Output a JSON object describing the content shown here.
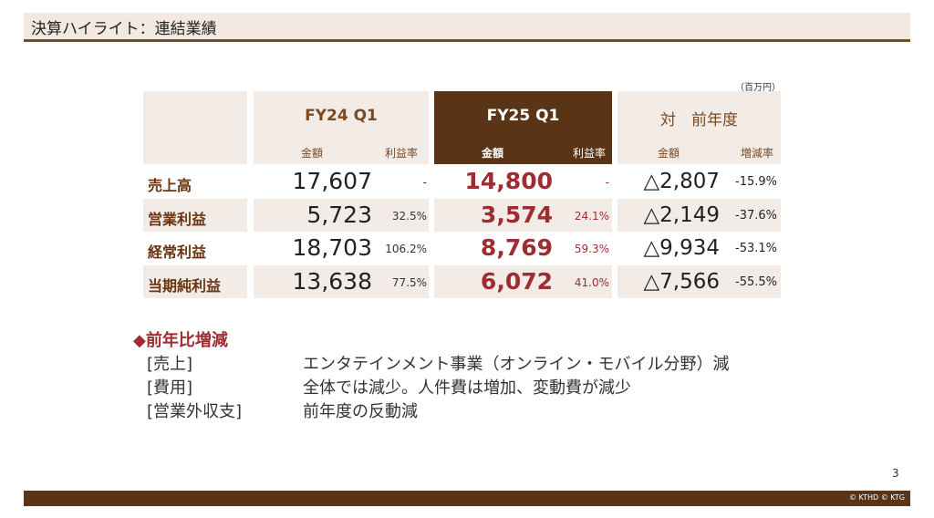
{
  "title": "決算ハイライト：連結業績",
  "unit": "（百万円）",
  "headers": {
    "fy24": "FY24 Q1",
    "fy25": "FY25 Q1",
    "yoy": "対　前年度",
    "amount": "金額",
    "margin": "利益率",
    "growth": "増減率"
  },
  "rows": [
    {
      "label": "売上高",
      "fy24_amount": "17,607",
      "fy24_margin": "-",
      "fy25_amount": "14,800",
      "fy25_margin": "-",
      "diff": "△2,807",
      "diff_pct": "-15.9%"
    },
    {
      "label": "営業利益",
      "fy24_amount": "5,723",
      "fy24_margin": "32.5%",
      "fy25_amount": "3,574",
      "fy25_margin": "24.1%",
      "diff": "△2,149",
      "diff_pct": "-37.6%"
    },
    {
      "label": "経常利益",
      "fy24_amount": "18,703",
      "fy24_margin": "106.2%",
      "fy25_amount": "8,769",
      "fy25_margin": "59.3%",
      "diff": "△9,934",
      "diff_pct": "-53.1%"
    },
    {
      "label": "当期純利益",
      "fy24_amount": "13,638",
      "fy24_margin": "77.5%",
      "fy25_amount": "6,072",
      "fy25_margin": "41.0%",
      "diff": "△7,566",
      "diff_pct": "-55.5%"
    }
  ],
  "yoy_section": {
    "title": "◆前年比増減",
    "items": [
      {
        "label": "[売上]",
        "text": "エンタテインメント事業（オンライン・モバイル分野）減"
      },
      {
        "label": "[費用]",
        "text": "全体では減少。人件費は増加、変動費が減少"
      },
      {
        "label": "[営業外収支]",
        "text": "前年度の反動減"
      }
    ]
  },
  "page_number": "3",
  "copyright": "© KTHD © KTG",
  "colors": {
    "brown_dark": "#5a3417",
    "brown_text": "#7a4a22",
    "highlight_red": "#9e2c30",
    "cell_beige": "#f2ebe6"
  }
}
